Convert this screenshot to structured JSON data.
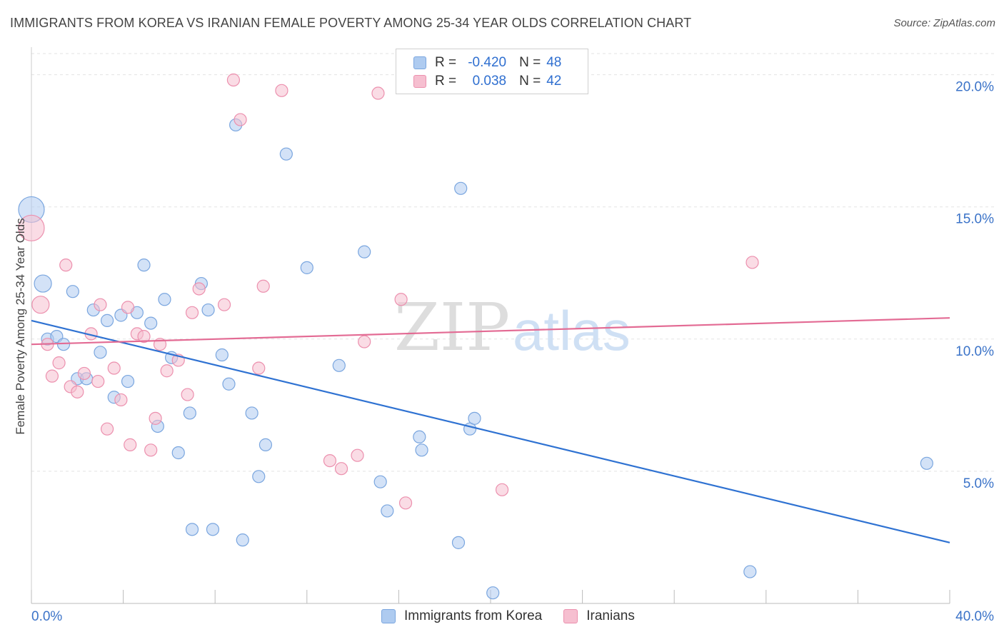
{
  "title": "IMMIGRANTS FROM KOREA VS IRANIAN FEMALE POVERTY AMONG 25-34 YEAR OLDS CORRELATION CHART",
  "source": "Source: ZipAtlas.com",
  "watermark": {
    "zip": "ZIP",
    "atlas": "atlas"
  },
  "colors": {
    "korea_fill": "#aecbf0",
    "korea_stroke": "#7aa6df",
    "korea_line": "#2f72d2",
    "iran_fill": "#f6bfd0",
    "iran_stroke": "#ec90ae",
    "iran_line": "#e36b94",
    "grid": "#e3e3e3",
    "axis_label": "#3b73c8"
  },
  "legend_top": {
    "rows": [
      {
        "r_label": "R =",
        "r_value": "-0.420",
        "n_label": "N =",
        "n_value": "48"
      },
      {
        "r_label": "R =",
        "r_value": "0.038",
        "n_label": "N =",
        "n_value": "42"
      }
    ]
  },
  "legend_bottom": [
    "Immigrants from Korea",
    "Iranians"
  ],
  "chart_data": {
    "type": "scatter",
    "title": "IMMIGRANTS FROM KOREA VS IRANIAN FEMALE POVERTY AMONG 25-34 YEAR OLDS CORRELATION CHART",
    "xlabel": "",
    "ylabel": "Female Poverty Among 25-34 Year Olds",
    "xlim": [
      0,
      40
    ],
    "ylim": [
      0,
      20.8
    ],
    "x_tick_labels": [
      "0.0%",
      "40.0%"
    ],
    "y_ticks": [
      5,
      10,
      15,
      20
    ],
    "y_tick_labels": [
      "5.0%",
      "10.0%",
      "15.0%",
      "20.0%"
    ],
    "grid": true,
    "series": [
      {
        "name": "Immigrants from Korea",
        "R": -0.42,
        "N": 48,
        "trend": {
          "x": [
            0,
            40
          ],
          "y": [
            10.7,
            2.3
          ]
        },
        "points": [
          {
            "x": 0.0,
            "y": 14.9,
            "s": 3
          },
          {
            "x": 0.5,
            "y": 12.1,
            "s": 2
          },
          {
            "x": 0.7,
            "y": 10.0,
            "s": 1
          },
          {
            "x": 1.1,
            "y": 10.1,
            "s": 1
          },
          {
            "x": 1.4,
            "y": 9.8,
            "s": 1
          },
          {
            "x": 1.8,
            "y": 11.8,
            "s": 1
          },
          {
            "x": 2.0,
            "y": 8.5,
            "s": 1
          },
          {
            "x": 2.4,
            "y": 8.5,
            "s": 1
          },
          {
            "x": 2.7,
            "y": 11.1,
            "s": 1
          },
          {
            "x": 3.0,
            "y": 9.5,
            "s": 1
          },
          {
            "x": 3.3,
            "y": 10.7,
            "s": 1
          },
          {
            "x": 3.6,
            "y": 7.8,
            "s": 1
          },
          {
            "x": 3.9,
            "y": 10.9,
            "s": 1
          },
          {
            "x": 4.2,
            "y": 8.4,
            "s": 1
          },
          {
            "x": 4.6,
            "y": 11.0,
            "s": 1
          },
          {
            "x": 4.9,
            "y": 12.8,
            "s": 1
          },
          {
            "x": 5.2,
            "y": 10.6,
            "s": 1
          },
          {
            "x": 5.5,
            "y": 6.7,
            "s": 1
          },
          {
            "x": 5.8,
            "y": 11.5,
            "s": 1
          },
          {
            "x": 6.1,
            "y": 9.3,
            "s": 1
          },
          {
            "x": 6.4,
            "y": 5.7,
            "s": 1
          },
          {
            "x": 6.9,
            "y": 7.2,
            "s": 1
          },
          {
            "x": 7.0,
            "y": 2.8,
            "s": 1
          },
          {
            "x": 7.4,
            "y": 12.1,
            "s": 1
          },
          {
            "x": 7.7,
            "y": 11.1,
            "s": 1
          },
          {
            "x": 7.9,
            "y": 2.8,
            "s": 1
          },
          {
            "x": 8.3,
            "y": 9.4,
            "s": 1
          },
          {
            "x": 8.6,
            "y": 8.3,
            "s": 1
          },
          {
            "x": 8.9,
            "y": 18.1,
            "s": 1
          },
          {
            "x": 9.2,
            "y": 2.4,
            "s": 1
          },
          {
            "x": 9.6,
            "y": 7.2,
            "s": 1
          },
          {
            "x": 9.9,
            "y": 4.8,
            "s": 1
          },
          {
            "x": 10.2,
            "y": 6.0,
            "s": 1
          },
          {
            "x": 11.1,
            "y": 17.0,
            "s": 1
          },
          {
            "x": 12.0,
            "y": 12.7,
            "s": 1
          },
          {
            "x": 13.4,
            "y": 9.0,
            "s": 1
          },
          {
            "x": 14.5,
            "y": 13.3,
            "s": 1
          },
          {
            "x": 15.2,
            "y": 4.6,
            "s": 1
          },
          {
            "x": 15.5,
            "y": 3.5,
            "s": 1
          },
          {
            "x": 16.9,
            "y": 6.3,
            "s": 1
          },
          {
            "x": 17.0,
            "y": 5.8,
            "s": 1
          },
          {
            "x": 18.6,
            "y": 2.3,
            "s": 1
          },
          {
            "x": 18.7,
            "y": 15.7,
            "s": 1
          },
          {
            "x": 19.1,
            "y": 6.6,
            "s": 1
          },
          {
            "x": 19.3,
            "y": 7.0,
            "s": 1
          },
          {
            "x": 20.1,
            "y": 0.4,
            "s": 1
          },
          {
            "x": 31.3,
            "y": 1.2,
            "s": 1
          },
          {
            "x": 39.0,
            "y": 5.3,
            "s": 1
          }
        ]
      },
      {
        "name": "Iranians",
        "R": 0.038,
        "N": 42,
        "trend": {
          "x": [
            0,
            40
          ],
          "y": [
            9.8,
            10.8
          ]
        },
        "points": [
          {
            "x": 0.0,
            "y": 14.2,
            "s": 3
          },
          {
            "x": 0.4,
            "y": 11.3,
            "s": 2
          },
          {
            "x": 0.7,
            "y": 9.8,
            "s": 1
          },
          {
            "x": 0.9,
            "y": 8.6,
            "s": 1
          },
          {
            "x": 1.2,
            "y": 9.1,
            "s": 1
          },
          {
            "x": 1.5,
            "y": 12.8,
            "s": 1
          },
          {
            "x": 1.7,
            "y": 8.2,
            "s": 1
          },
          {
            "x": 2.0,
            "y": 8.0,
            "s": 1
          },
          {
            "x": 2.3,
            "y": 8.7,
            "s": 1
          },
          {
            "x": 2.6,
            "y": 10.2,
            "s": 1
          },
          {
            "x": 2.9,
            "y": 8.4,
            "s": 1
          },
          {
            "x": 3.0,
            "y": 11.3,
            "s": 1
          },
          {
            "x": 3.3,
            "y": 6.6,
            "s": 1
          },
          {
            "x": 3.6,
            "y": 8.9,
            "s": 1
          },
          {
            "x": 3.9,
            "y": 7.7,
            "s": 1
          },
          {
            "x": 4.2,
            "y": 11.2,
            "s": 1
          },
          {
            "x": 4.3,
            "y": 6.0,
            "s": 1
          },
          {
            "x": 4.6,
            "y": 10.2,
            "s": 1
          },
          {
            "x": 4.9,
            "y": 10.1,
            "s": 1
          },
          {
            "x": 5.2,
            "y": 5.8,
            "s": 1
          },
          {
            "x": 5.4,
            "y": 7.0,
            "s": 1
          },
          {
            "x": 5.6,
            "y": 9.8,
            "s": 1
          },
          {
            "x": 5.9,
            "y": 8.8,
            "s": 1
          },
          {
            "x": 6.4,
            "y": 9.2,
            "s": 1
          },
          {
            "x": 6.8,
            "y": 7.9,
            "s": 1
          },
          {
            "x": 7.0,
            "y": 11.0,
            "s": 1
          },
          {
            "x": 7.3,
            "y": 11.9,
            "s": 1
          },
          {
            "x": 8.4,
            "y": 11.3,
            "s": 1
          },
          {
            "x": 8.8,
            "y": 19.8,
            "s": 1
          },
          {
            "x": 9.1,
            "y": 18.3,
            "s": 1
          },
          {
            "x": 9.9,
            "y": 8.9,
            "s": 1
          },
          {
            "x": 10.1,
            "y": 12.0,
            "s": 1
          },
          {
            "x": 10.9,
            "y": 19.4,
            "s": 1
          },
          {
            "x": 13.0,
            "y": 5.4,
            "s": 1
          },
          {
            "x": 13.5,
            "y": 5.1,
            "s": 1
          },
          {
            "x": 14.2,
            "y": 5.6,
            "s": 1
          },
          {
            "x": 14.5,
            "y": 9.9,
            "s": 1
          },
          {
            "x": 15.1,
            "y": 19.3,
            "s": 1
          },
          {
            "x": 16.1,
            "y": 11.5,
            "s": 1
          },
          {
            "x": 16.3,
            "y": 3.8,
            "s": 1
          },
          {
            "x": 20.5,
            "y": 4.3,
            "s": 1
          },
          {
            "x": 31.4,
            "y": 12.9,
            "s": 1
          }
        ]
      }
    ]
  }
}
